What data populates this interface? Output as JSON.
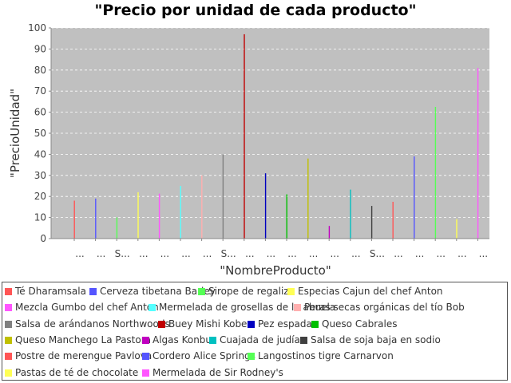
{
  "chart_data": {
    "type": "bar",
    "title": "\"Precio por unidad de cada producto\"",
    "xlabel": "\"NombreProducto\"",
    "ylabel": "\"PrecioUnidad\"",
    "ylim": [
      0,
      100
    ],
    "yticks": [
      0,
      10,
      20,
      30,
      40,
      50,
      60,
      70,
      80,
      90,
      100
    ],
    "grid": true,
    "legend_position": "bottom",
    "x_tick_labels": [
      "...",
      "...",
      "S...",
      "...",
      "...",
      "...",
      "...",
      "S...",
      "...",
      "...",
      "...",
      "...",
      "...",
      "...",
      "S...",
      "...",
      "...",
      "...",
      "...",
      "..."
    ],
    "categories": [
      "Té Dharamsala",
      "Cerveza tibetana Barley",
      "Sirope de regaliz",
      "Especias Cajun del chef Anton",
      "Mezcla Gumbo del chef Anton",
      "Mermelada de grosellas de la abuela",
      "Peras secas orgánicas del tío Bob",
      "Salsa de arándanos Northwoods",
      "Buey Mishi Kobe",
      "Pez espada",
      "Queso Cabrales",
      "Queso Manchego La Pastora",
      "Algas Konbu",
      "Cuajada de judías",
      "Salsa de soja baja en sodio",
      "Postre de merengue Pavlova",
      "Cordero Alice Springs",
      "Langostinos tigre Carnarvon",
      "Pastas de té de chocolate",
      "Mermelada de Sir Rodney's"
    ],
    "values": [
      18,
      19,
      10,
      22,
      21.35,
      25,
      30,
      40,
      97,
      31,
      21,
      38,
      6,
      23.25,
      15.5,
      17.45,
      39,
      62.5,
      9.2,
      81
    ],
    "colors": [
      "#ff5555",
      "#5555ff",
      "#55ff55",
      "#ffff55",
      "#ff55ff",
      "#55ffff",
      "#ffafaf",
      "#808080",
      "#c00000",
      "#0000c0",
      "#00c000",
      "#c0c000",
      "#c000c0",
      "#00c0c0",
      "#404040",
      "#ff5555",
      "#5555ff",
      "#55ff55",
      "#ffff55",
      "#ff55ff"
    ]
  }
}
